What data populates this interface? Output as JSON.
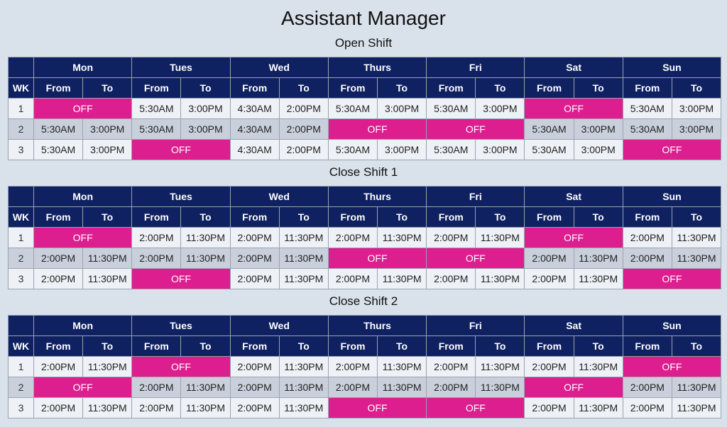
{
  "title": "Assistant Manager",
  "headers": {
    "wk": "WK",
    "from": "From",
    "to": "To",
    "days": [
      "Mon",
      "Tues",
      "Wed",
      "Thurs",
      "Fri",
      "Sat",
      "Sun"
    ]
  },
  "colors": {
    "header_bg": "#0f2161",
    "off_bg": "#dd1e8e",
    "row_light": "#eef1f5",
    "row_dark": "#c9d0db",
    "page_bg": "#d9e1ea"
  },
  "shifts": [
    {
      "name": "Open Shift",
      "rows": [
        {
          "wk": "1",
          "days": [
            [
              "OFF"
            ],
            [
              "5:30AM",
              "3:00PM"
            ],
            [
              "4:30AM",
              "2:00PM"
            ],
            [
              "5:30AM",
              "3:00PM"
            ],
            [
              "5:30AM",
              "3:00PM"
            ],
            [
              "OFF"
            ],
            [
              "5:30AM",
              "3:00PM"
            ]
          ]
        },
        {
          "wk": "2",
          "days": [
            [
              "5:30AM",
              "3:00PM"
            ],
            [
              "5:30AM",
              "3:00PM"
            ],
            [
              "4:30AM",
              "2:00PM"
            ],
            [
              "OFF"
            ],
            [
              "OFF"
            ],
            [
              "5:30AM",
              "3:00PM"
            ],
            [
              "5:30AM",
              "3:00PM"
            ]
          ]
        },
        {
          "wk": "3",
          "days": [
            [
              "5:30AM",
              "3:00PM"
            ],
            [
              "OFF"
            ],
            [
              "4:30AM",
              "2:00PM"
            ],
            [
              "5:30AM",
              "3:00PM"
            ],
            [
              "5:30AM",
              "3:00PM"
            ],
            [
              "5:30AM",
              "3:00PM"
            ],
            [
              "OFF"
            ]
          ]
        }
      ]
    },
    {
      "name": "Close Shift 1",
      "rows": [
        {
          "wk": "1",
          "days": [
            [
              "OFF"
            ],
            [
              "2:00PM",
              "11:30PM"
            ],
            [
              "2:00PM",
              "11:30PM"
            ],
            [
              "2:00PM",
              "11:30PM"
            ],
            [
              "2:00PM",
              "11:30PM"
            ],
            [
              "OFF"
            ],
            [
              "2:00PM",
              "11:30PM"
            ]
          ]
        },
        {
          "wk": "2",
          "days": [
            [
              "2:00PM",
              "11:30PM"
            ],
            [
              "2:00PM",
              "11:30PM"
            ],
            [
              "2:00PM",
              "11:30PM"
            ],
            [
              "OFF"
            ],
            [
              "OFF"
            ],
            [
              "2:00PM",
              "11:30PM"
            ],
            [
              "2:00PM",
              "11:30PM"
            ]
          ]
        },
        {
          "wk": "3",
          "days": [
            [
              "2:00PM",
              "11:30PM"
            ],
            [
              "OFF"
            ],
            [
              "2:00PM",
              "11:30PM"
            ],
            [
              "2:00PM",
              "11:30PM"
            ],
            [
              "2:00PM",
              "11:30PM"
            ],
            [
              "2:00PM",
              "11:30PM"
            ],
            [
              "OFF"
            ]
          ]
        }
      ]
    },
    {
      "name": "Close Shift 2",
      "rows": [
        {
          "wk": "1",
          "days": [
            [
              "2:00PM",
              "11:30PM"
            ],
            [
              "OFF"
            ],
            [
              "2:00PM",
              "11:30PM"
            ],
            [
              "2:00PM",
              "11:30PM"
            ],
            [
              "2:00PM",
              "11:30PM"
            ],
            [
              "2:00PM",
              "11:30PM"
            ],
            [
              "OFF"
            ]
          ]
        },
        {
          "wk": "2",
          "days": [
            [
              "OFF"
            ],
            [
              "2:00PM",
              "11:30PM"
            ],
            [
              "2:00PM",
              "11:30PM"
            ],
            [
              "2:00PM",
              "11:30PM"
            ],
            [
              "2:00PM",
              "11:30PM"
            ],
            [
              "OFF"
            ],
            [
              "2:00PM",
              "11:30PM"
            ]
          ]
        },
        {
          "wk": "3",
          "days": [
            [
              "2:00PM",
              "11:30PM"
            ],
            [
              "2:00PM",
              "11:30PM"
            ],
            [
              "2:00PM",
              "11:30PM"
            ],
            [
              "OFF"
            ],
            [
              "OFF"
            ],
            [
              "2:00PM",
              "11:30PM"
            ],
            [
              "2:00PM",
              "11:30PM"
            ]
          ]
        }
      ]
    }
  ]
}
